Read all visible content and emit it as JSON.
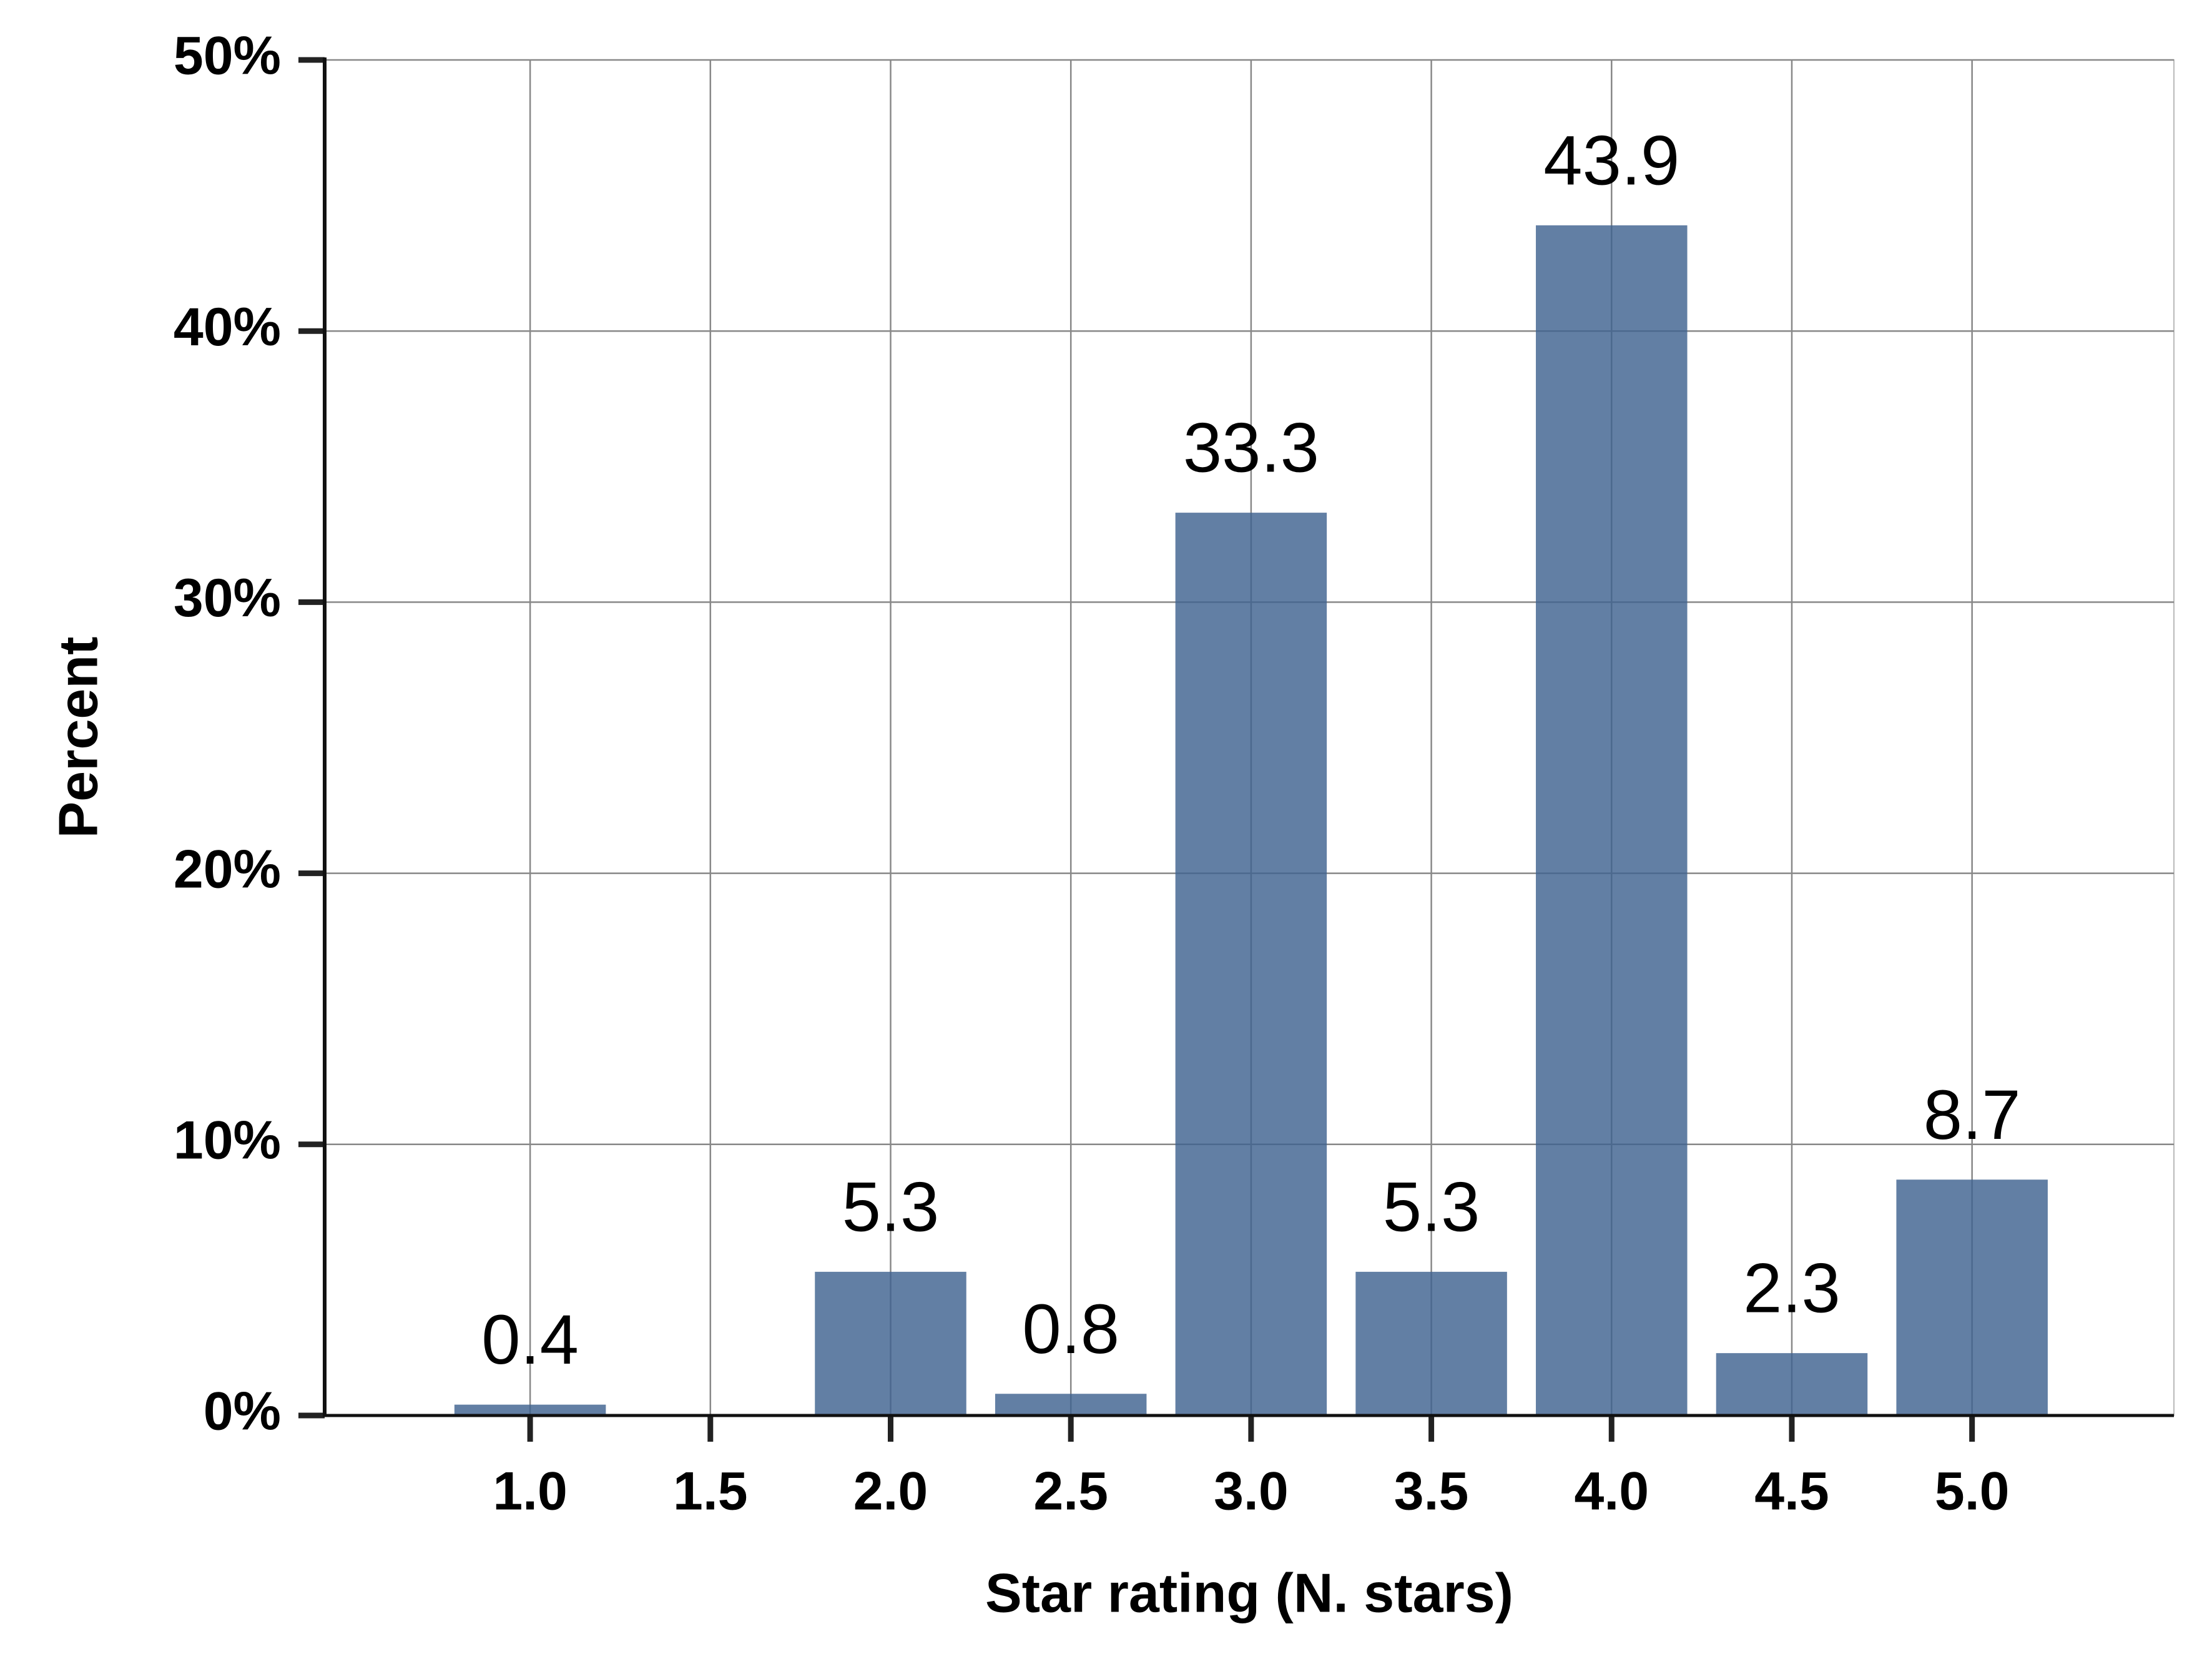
{
  "chart_data": {
    "type": "bar",
    "x_label": "Star rating (N. stars)",
    "y_label": "Percent",
    "x": [
      1.0,
      2.0,
      2.5,
      3.0,
      3.5,
      4.0,
      4.5,
      5.0
    ],
    "values": [
      0.4,
      5.3,
      0.8,
      33.3,
      5.3,
      43.9,
      2.3,
      8.7
    ],
    "color": "#3f6390",
    "xlim": [
      0.43,
      5.56
    ],
    "xticks": [
      {
        "value": 1.0,
        "label": "1.0"
      },
      {
        "value": 1.5,
        "label": "1.5"
      },
      {
        "value": 2.0,
        "label": "2.0"
      },
      {
        "value": 2.5,
        "label": "2.5"
      },
      {
        "value": 3.0,
        "label": "3.0"
      },
      {
        "value": 3.5,
        "label": "3.5"
      },
      {
        "value": 4.0,
        "label": "4.0"
      },
      {
        "value": 4.5,
        "label": "4.5"
      },
      {
        "value": 5.0,
        "label": "5.0"
      }
    ],
    "ylim": [
      0,
      50
    ],
    "yticks": [
      {
        "value": 0,
        "label": "0%"
      },
      {
        "value": 10,
        "label": "10%"
      },
      {
        "value": 20,
        "label": "20%"
      },
      {
        "value": 30,
        "label": "30%"
      },
      {
        "value": 40,
        "label": "40%"
      },
      {
        "value": 50,
        "label": "50%"
      }
    ],
    "grid": true
  }
}
